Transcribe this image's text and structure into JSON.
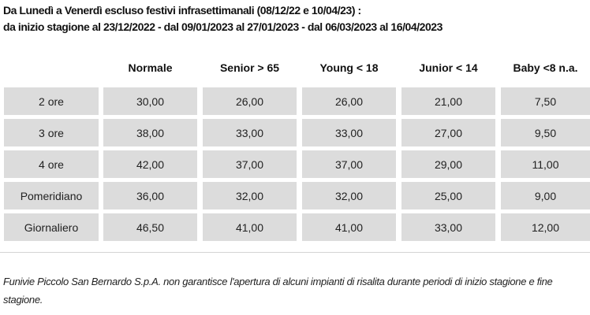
{
  "title": {
    "line1": "Da Lunedì a Venerdì escluso festivi infrasettimanali (08/12/22 e 10/04/23) :",
    "line2": "da inizio stagione al 23/12/2022 - dal 09/01/2023 al 27/01/2023 - dal 06/03/2023 al 16/04/2023"
  },
  "table": {
    "headers": [
      "",
      "Normale",
      "Senior > 65",
      "Young < 18",
      "Junior < 14",
      "Baby <8 n.a."
    ],
    "rows": [
      [
        "2 ore",
        "30,00",
        "26,00",
        "26,00",
        "21,00",
        "7,50"
      ],
      [
        "3 ore",
        "38,00",
        "33,00",
        "33,00",
        "27,00",
        "9,50"
      ],
      [
        "4 ore",
        "42,00",
        "37,00",
        "37,00",
        "29,00",
        "11,00"
      ],
      [
        "Pomeridiano",
        "36,00",
        "32,00",
        "32,00",
        "25,00",
        "9,00"
      ],
      [
        "Giornaliero",
        "46,50",
        "41,00",
        "41,00",
        "33,00",
        "12,00"
      ]
    ]
  },
  "note": "Funivie Piccolo San Bernardo S.p.A. non garantisce l'apertura di alcuni impianti di risalita durante  periodi di inizio stagione e fine stagione.",
  "colors": {
    "cell_bg": "#dcdcdc",
    "divider": "#d4d4d4"
  }
}
